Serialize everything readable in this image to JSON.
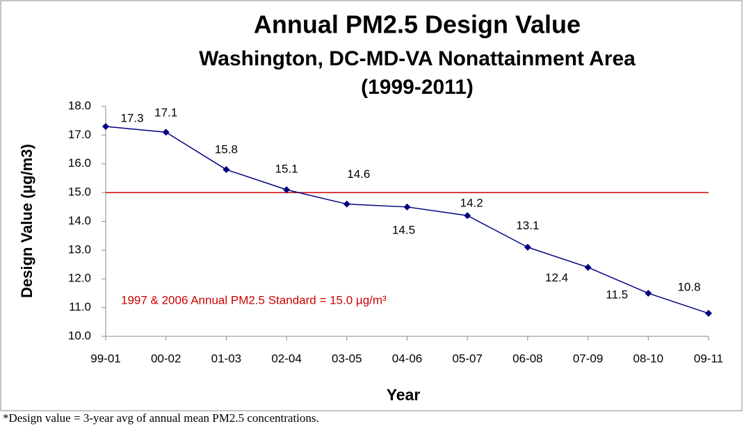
{
  "chart_data": {
    "type": "line",
    "title": "Annual PM2.5 Design Value",
    "subtitle": [
      "Washington, DC-MD-VA Nonattainment Area",
      "(1999-2011)"
    ],
    "x_label": "Year",
    "y_label": "Design Value (µg/m3)",
    "categories": [
      "99-01",
      "00-02",
      "01-03",
      "02-04",
      "03-05",
      "04-06",
      "05-07",
      "06-08",
      "07-09",
      "08-10",
      "09-11"
    ],
    "series": [
      {
        "name": "Design Value",
        "color": "#000080",
        "values": [
          17.3,
          17.1,
          15.8,
          15.1,
          14.6,
          14.5,
          14.2,
          13.1,
          12.4,
          11.5,
          10.8
        ]
      }
    ],
    "ylim": [
      10,
      18
    ],
    "yticks": [
      {
        "value": 10,
        "label": "10.0"
      },
      {
        "value": 11,
        "label": "11.0"
      },
      {
        "value": 12,
        "label": "12.0"
      },
      {
        "value": 13,
        "label": "13.0"
      },
      {
        "value": 14,
        "label": "14.0"
      },
      {
        "value": 15,
        "label": "15.0"
      },
      {
        "value": 16,
        "label": "16.0"
      },
      {
        "value": 17,
        "label": "17.0"
      },
      {
        "value": 18,
        "label": "18.0"
      }
    ],
    "reference_line": {
      "value": 15,
      "color": "#cc0000",
      "label": "1997 & 2006 Annual PM2.5 Standard = 15.0 µg/m³"
    },
    "footnote": "*Design value = 3-year avg of annual mean PM2.5 concentrations."
  }
}
